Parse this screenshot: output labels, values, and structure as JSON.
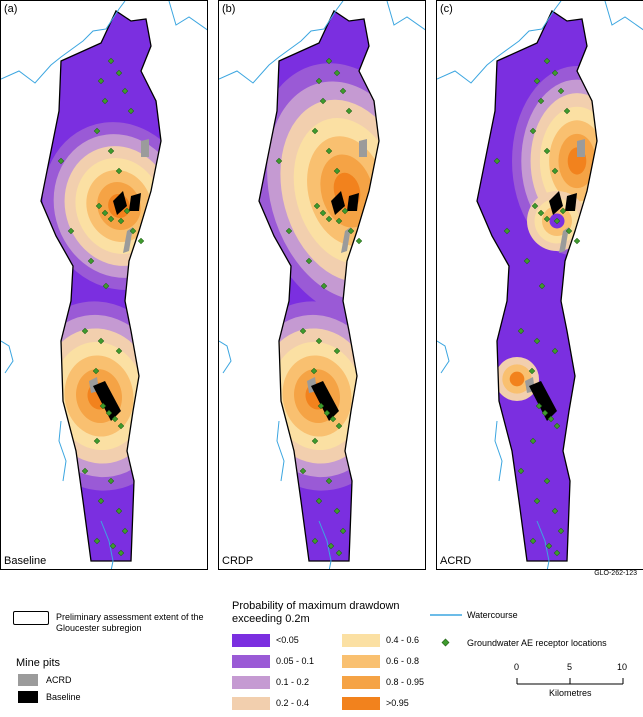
{
  "panels": [
    {
      "letter": "(a)",
      "caption": "Baseline"
    },
    {
      "letter": "(b)",
      "caption": "CRDP"
    },
    {
      "letter": "(c)",
      "caption": "ACRD"
    }
  ],
  "figure_code": "GLO-262-123",
  "legend": {
    "extent_label": "Preliminary assessment extent of the Gloucester subregion",
    "mine_pits_title": "Mine pits",
    "mine_pits": [
      {
        "label": "ACRD",
        "color": "#9b9b9b"
      },
      {
        "label": "Baseline",
        "color": "#000000"
      }
    ],
    "probability_title": "Probability of maximum drawdown exceeding 0.2m",
    "classes": [
      {
        "label": "<0.05",
        "color": "#7b2fe0"
      },
      {
        "label": "0.05 - 0.1",
        "color": "#9a5ad6"
      },
      {
        "label": "0.1 - 0.2",
        "color": "#c59ad2"
      },
      {
        "label": "0.2 - 0.4",
        "color": "#f2cfae"
      },
      {
        "label": "0.4 - 0.6",
        "color": "#fbe0a3"
      },
      {
        "label": "0.6 - 0.8",
        "color": "#f9c070"
      },
      {
        "label": "0.8 - 0.95",
        "color": "#f5a345"
      },
      {
        "label": ">0.95",
        "color": "#f2821d"
      }
    ],
    "watercourse_label": "Watercourse",
    "watercourse_color": "#3ca6e0",
    "receptor_label": "Groundwater AE receptor locations",
    "receptor_color": "#3f9b2e",
    "scale": {
      "ticks": [
        "0",
        "5",
        "10"
      ],
      "unit": "Kilometres"
    }
  }
}
